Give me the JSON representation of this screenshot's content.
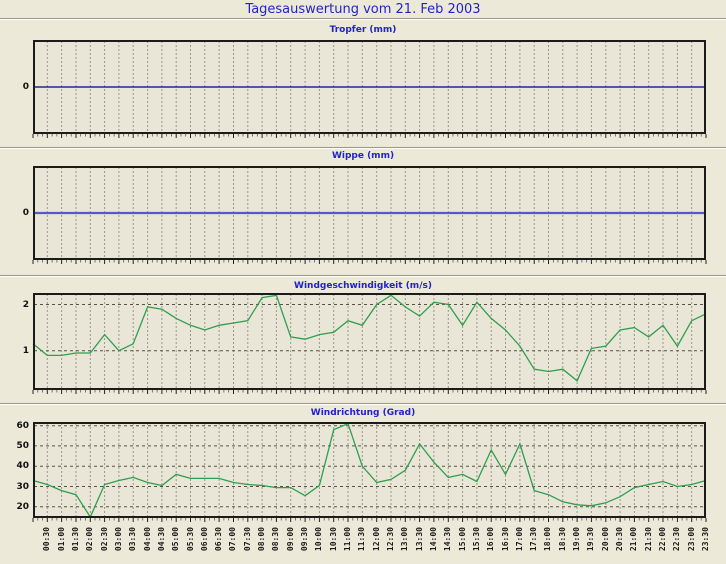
{
  "page_title": "Tagesauswertung vom 21. Feb 2003",
  "colors": {
    "background": "#ece9d8",
    "plot_background": "#e9e6d7",
    "title_blue": "#2222cc",
    "grid_vertical": "#9a968a",
    "grid_horizontal": "#55524a",
    "plot_border": "#1b1b1b",
    "axis_text": "#111111"
  },
  "x_axis": {
    "labels": [
      "00:30",
      "01:00",
      "01:30",
      "02:00",
      "02:30",
      "03:00",
      "03:30",
      "04:00",
      "04:30",
      "05:00",
      "05:30",
      "06:00",
      "06:30",
      "07:00",
      "07:30",
      "08:00",
      "08:30",
      "09:00",
      "09:30",
      "10:00",
      "10:30",
      "11:00",
      "11:30",
      "12:00",
      "12:30",
      "13:00",
      "13:30",
      "14:00",
      "14:30",
      "15:00",
      "15:30",
      "16:00",
      "16:30",
      "17:00",
      "17:30",
      "18:00",
      "18:30",
      "19:00",
      "19:30",
      "20:00",
      "20:30",
      "21:00",
      "21:30",
      "22:00",
      "22:30",
      "23:00",
      "23:30"
    ]
  },
  "chart_data": [
    {
      "type": "line",
      "title": "Tropfer (mm)",
      "ylabel": "mm",
      "yticks": [
        0
      ],
      "ylim": [
        -1,
        1
      ],
      "line_color": "#000080",
      "line_width": 1.2,
      "x_start": "00:00",
      "x_step_minutes": 30,
      "values": [
        0,
        0,
        0,
        0,
        0,
        0,
        0,
        0,
        0,
        0,
        0,
        0,
        0,
        0,
        0,
        0,
        0,
        0,
        0,
        0,
        0,
        0,
        0,
        0,
        0,
        0,
        0,
        0,
        0,
        0,
        0,
        0,
        0,
        0,
        0,
        0,
        0,
        0,
        0,
        0,
        0,
        0,
        0,
        0,
        0,
        0,
        0,
        0
      ]
    },
    {
      "type": "line",
      "title": "Wippe (mm)",
      "ylabel": "mm",
      "yticks": [
        0
      ],
      "ylim": [
        -1,
        1
      ],
      "line_color": "#5757cf",
      "line_width": 2.2,
      "x_start": "00:00",
      "x_step_minutes": 30,
      "values": [
        0,
        0,
        0,
        0,
        0,
        0,
        0,
        0,
        0,
        0,
        0,
        0,
        0,
        0,
        0,
        0,
        0,
        0,
        0,
        0,
        0,
        0,
        0,
        0,
        0,
        0,
        0,
        0,
        0,
        0,
        0,
        0,
        0,
        0,
        0,
        0,
        0,
        0,
        0,
        0,
        0,
        0,
        0,
        0,
        0,
        0,
        0,
        0
      ]
    },
    {
      "type": "line",
      "title": "Windgeschwindigkeit (m/s)",
      "ylabel": "m/s",
      "yticks": [
        1,
        2
      ],
      "ylim": [
        0.15,
        2.25
      ],
      "line_color": "#2f9e4e",
      "line_width": 1.3,
      "x_start": "00:00",
      "x_step_minutes": 30,
      "values": [
        1.15,
        0.9,
        0.9,
        0.95,
        0.95,
        1.35,
        1.0,
        1.15,
        1.95,
        1.9,
        1.7,
        1.55,
        1.45,
        1.55,
        1.6,
        1.65,
        2.15,
        2.2,
        1.3,
        1.25,
        1.35,
        1.4,
        1.65,
        1.55,
        2.0,
        2.2,
        1.95,
        1.75,
        2.05,
        2.0,
        1.55,
        2.05,
        1.7,
        1.45,
        1.1,
        0.6,
        0.55,
        0.6,
        0.35,
        1.05,
        1.1,
        1.45,
        1.5,
        1.3,
        1.55,
        1.1,
        1.65,
        1.8
      ]
    },
    {
      "type": "line",
      "title": "Windrichtung (Grad)",
      "ylabel": "Grad",
      "yticks": [
        20,
        30,
        40,
        50,
        60
      ],
      "ylim": [
        14.5,
        61.8
      ],
      "line_color": "#2f9e4e",
      "line_width": 1.3,
      "x_start": "00:00",
      "x_step_minutes": 30,
      "values": [
        33,
        31,
        28,
        26,
        15,
        31,
        33,
        34.5,
        32,
        30.5,
        36,
        34,
        34,
        34,
        32,
        31,
        30.5,
        29.5,
        29.5,
        25.5,
        30.5,
        58,
        61,
        40,
        32,
        33.5,
        38,
        51,
        42,
        34.5,
        36,
        32.5,
        48,
        36,
        51,
        28,
        26,
        22.5,
        21,
        20.5,
        22,
        25,
        29.5,
        31,
        32.5,
        30,
        31,
        33
      ]
    }
  ]
}
